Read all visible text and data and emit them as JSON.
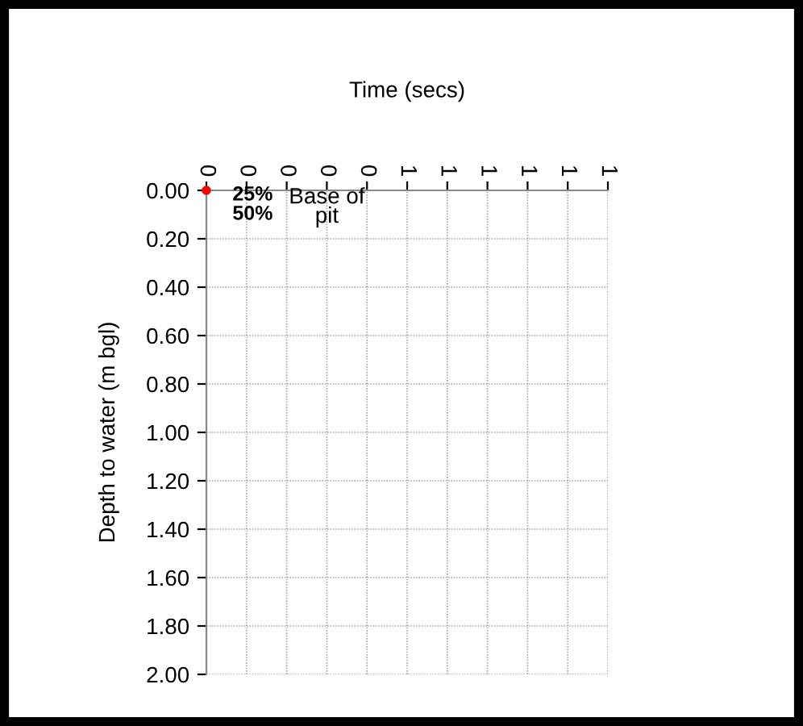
{
  "chart_data": {
    "type": "scatter",
    "xlabel": "Time (secs)",
    "ylabel": "Depth to water (m bgl)",
    "series": [
      {
        "color": "#ff0000",
        "x": [
          0
        ],
        "values": [
          0
        ]
      }
    ],
    "marker": "circle",
    "xlim": [
      0,
      1
    ],
    "xticks": [
      0,
      {
        "value": 0.1,
        "label": "0"
      },
      {
        "value": 0.2,
        "label": "0"
      },
      {
        "value": 0.3,
        "label": "0"
      },
      {
        "value": 0.4,
        "label": "0"
      },
      {
        "value": 0.5,
        "label": "1"
      },
      {
        "value": 0.6,
        "label": "1"
      },
      {
        "value": 0.7,
        "label": "1"
      },
      {
        "value": 0.8,
        "label": "1"
      },
      {
        "value": 0.9,
        "label": "1"
      },
      1
    ],
    "ylim": [
      2,
      0
    ],
    "yticks": [
      {
        "value": 0,
        "label": "0.00"
      },
      {
        "value": 0.2,
        "label": "0.20"
      },
      {
        "value": 0.4,
        "label": "0.40"
      },
      {
        "value": 0.6,
        "label": "0.60"
      },
      {
        "value": 0.8,
        "label": "0.80"
      },
      {
        "value": 1,
        "label": "1.00"
      },
      {
        "value": 1.2,
        "label": "1.20"
      },
      {
        "value": 1.4,
        "label": "1.40"
      },
      {
        "value": 1.6,
        "label": "1.60"
      },
      {
        "value": 1.8,
        "label": "1.80"
      },
      {
        "value": 2,
        "label": "2.00"
      }
    ],
    "grid": true,
    "annotations": [
      "Base of\npit",
      "25%",
      "50%"
    ]
  }
}
